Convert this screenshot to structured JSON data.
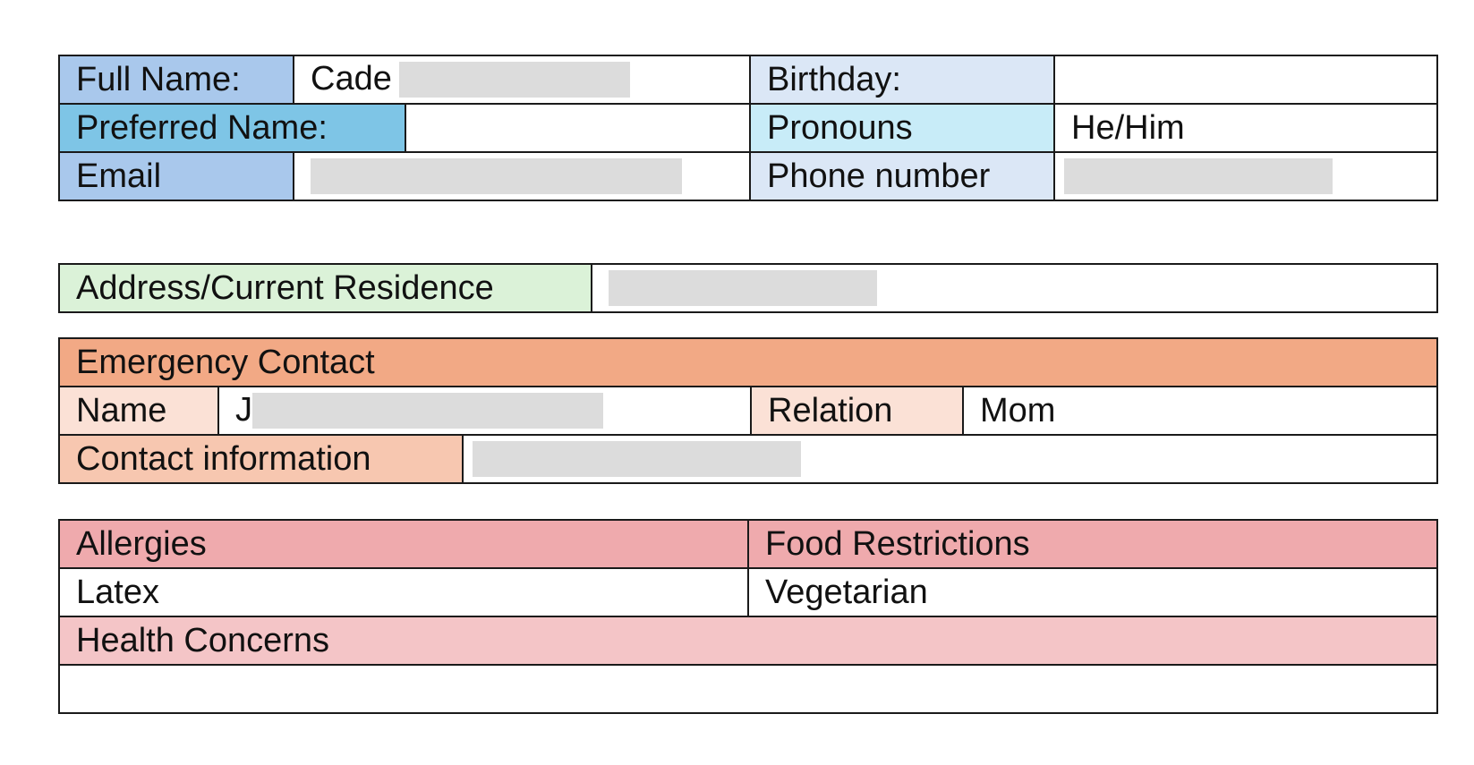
{
  "personal": {
    "full_name_label": "Full Name:",
    "full_name_value": "Cade",
    "birthday_label": "Birthday:",
    "birthday_value": "",
    "preferred_name_label": "Preferred Name:",
    "preferred_name_value": "",
    "pronouns_label": "Pronouns",
    "pronouns_value": "He/Him",
    "email_label": "Email",
    "phone_label": "Phone number"
  },
  "address": {
    "label": "Address/Current Residence"
  },
  "emergency": {
    "header": "Emergency Contact",
    "name_label": "Name",
    "name_value_visible": "J",
    "relation_label": "Relation",
    "relation_value": "Mom",
    "contact_label": "Contact information"
  },
  "health": {
    "allergies_label": "Allergies",
    "food_label": "Food Restrictions",
    "allergies_value": "Latex",
    "food_value": "Vegetarian",
    "concerns_label": "Health Concerns",
    "concerns_value": ""
  },
  "colors": {
    "border": "#1a1a1a",
    "blue_dark": "#a9c8ec",
    "blue_mid": "#7ec5e6",
    "blue_light": "#dbe7f6",
    "cyan_light": "#c8ecf8",
    "green": "#dbf2d8",
    "orange": "#f2a985",
    "peach": "#f7c7b0",
    "peach_light": "#fbe1d6",
    "red": "#efaaad",
    "pink": "#f4c5c7",
    "redaction": "#dcdcdc"
  }
}
